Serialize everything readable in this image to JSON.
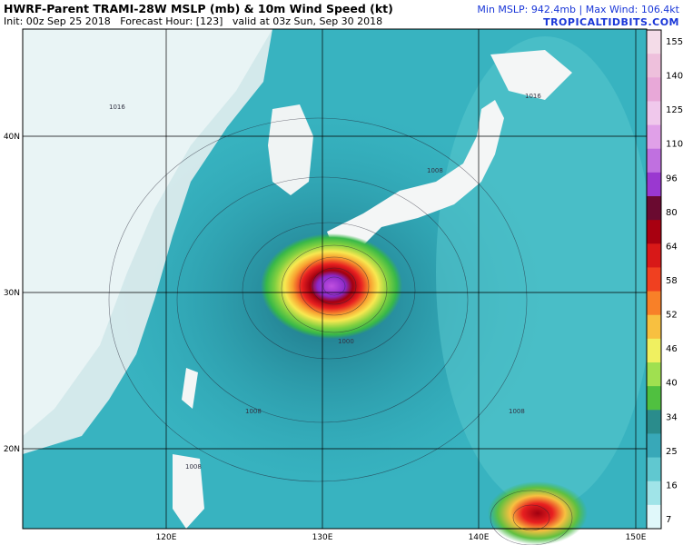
{
  "header": {
    "title": "HWRF-Parent TRAMI-28W MSLP (mb) & 10m Wind Speed (kt)",
    "init": "Init: 00z Sep 25 2018   Forecast Hour: [123]   valid at 03z Sun, Sep 30 2018",
    "stats": "Min MSLP: 942.4mb | Max Wind: 106.4kt",
    "site": "TROPICALTIDBITS.COM"
  },
  "map": {
    "lat_labels": [
      "40N",
      "30N",
      "20N"
    ],
    "lon_labels": [
      "120E",
      "130E",
      "140E",
      "150E"
    ],
    "isobar_labels": [
      "1016",
      "1008",
      "1008",
      "1000",
      "1008",
      "1008",
      "1016"
    ],
    "colorbar": {
      "labels": [
        "155",
        "140",
        "125",
        "110",
        "96",
        "80",
        "64",
        "58",
        "52",
        "46",
        "40",
        "34",
        "25",
        "16",
        "7"
      ]
    }
  }
}
